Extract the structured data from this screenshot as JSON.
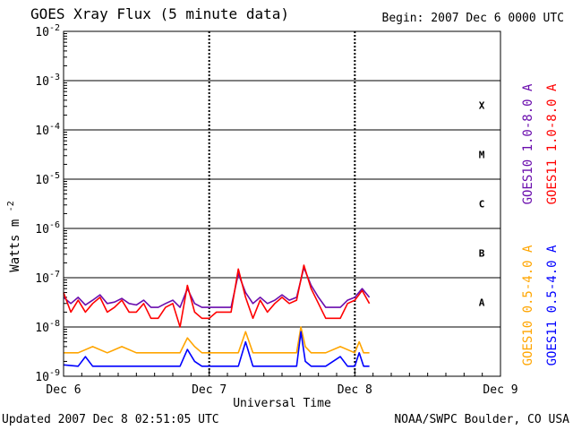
{
  "header": {
    "title": "GOES Xray Flux (5 minute data)",
    "begin": "Begin:  2007 Dec 6 0000 UTC"
  },
  "footer": {
    "updated": "Updated 2007 Dec  8 02:51:05 UTC",
    "credit": "NOAA/SWPC Boulder, CO USA"
  },
  "colors": {
    "goes10_long": "#6a0dad",
    "goes11_long": "#ff0000",
    "goes10_short": "#ffa500",
    "goes11_short": "#0000ff",
    "axis": "#000000"
  },
  "chart_data": {
    "type": "line",
    "title": "GOES Xray Flux (5 minute data)",
    "xlabel": "Universal Time",
    "ylabel": "Watts m",
    "ylabel_sup": "-2",
    "y_scale": "log",
    "ylim": [
      1e-09,
      0.01
    ],
    "y_ticks": [
      {
        "base": "10",
        "exp": "-9"
      },
      {
        "base": "10",
        "exp": "-8"
      },
      {
        "base": "10",
        "exp": "-7"
      },
      {
        "base": "10",
        "exp": "-6"
      },
      {
        "base": "10",
        "exp": "-5"
      },
      {
        "base": "10",
        "exp": "-4"
      },
      {
        "base": "10",
        "exp": "-3"
      },
      {
        "base": "10",
        "exp": "-2"
      }
    ],
    "x_ticks": [
      "Dec 6",
      "Dec 7",
      "Dec 8",
      "Dec 9"
    ],
    "xlim_days": [
      0,
      3
    ],
    "flare_classes": [
      "A",
      "B",
      "C",
      "M",
      "X"
    ],
    "grid": true,
    "legend": [
      {
        "label": "GOES10 1.0-8.0 A",
        "color": "#6a0dad",
        "placement": "right-upper"
      },
      {
        "label": "GOES11 1.0-8.0 A",
        "color": "#ff0000",
        "placement": "right-upper"
      },
      {
        "label": "GOES10 0.5-4.0 A",
        "color": "#ffa500",
        "placement": "right-lower"
      },
      {
        "label": "GOES11 0.5-4.0 A",
        "color": "#0000ff",
        "placement": "right-lower"
      }
    ],
    "series": [
      {
        "name": "GOES10 1.0-8.0 A",
        "color": "#6a0dad",
        "x": [
          0.0,
          0.05,
          0.1,
          0.15,
          0.2,
          0.25,
          0.3,
          0.35,
          0.4,
          0.45,
          0.5,
          0.55,
          0.6,
          0.65,
          0.7,
          0.75,
          0.8,
          0.85,
          0.9,
          0.95,
          1.0,
          1.05,
          1.1,
          1.15,
          1.2,
          1.25,
          1.3,
          1.35,
          1.4,
          1.45,
          1.5,
          1.55,
          1.6,
          1.65,
          1.7,
          1.75,
          1.8,
          1.85,
          1.9,
          1.95,
          2.0,
          2.05,
          2.1
        ],
        "y": [
          4e-08,
          3e-08,
          4e-08,
          2.8e-08,
          3.5e-08,
          4.5e-08,
          3e-08,
          3.2e-08,
          3.8e-08,
          3e-08,
          2.8e-08,
          3.5e-08,
          2.5e-08,
          2.5e-08,
          3e-08,
          3.5e-08,
          2.5e-08,
          6e-08,
          3e-08,
          2.5e-08,
          2.5e-08,
          2.5e-08,
          2.5e-08,
          2.5e-08,
          1.2e-07,
          5e-08,
          3e-08,
          4e-08,
          3e-08,
          3.5e-08,
          4.5e-08,
          3.5e-08,
          4e-08,
          1.6e-07,
          7e-08,
          4e-08,
          2.5e-08,
          2.5e-08,
          2.5e-08,
          3.5e-08,
          4e-08,
          6e-08,
          4e-08
        ]
      },
      {
        "name": "GOES11 1.0-8.0 A",
        "color": "#ff0000",
        "x": [
          0.0,
          0.05,
          0.1,
          0.15,
          0.2,
          0.25,
          0.3,
          0.35,
          0.4,
          0.45,
          0.5,
          0.55,
          0.6,
          0.65,
          0.7,
          0.75,
          0.8,
          0.85,
          0.9,
          0.95,
          1.0,
          1.05,
          1.1,
          1.15,
          1.2,
          1.25,
          1.3,
          1.35,
          1.4,
          1.45,
          1.5,
          1.55,
          1.6,
          1.65,
          1.7,
          1.75,
          1.8,
          1.85,
          1.9,
          1.95,
          2.0,
          2.05,
          2.1
        ],
        "y": [
          5e-08,
          2e-08,
          3.5e-08,
          2e-08,
          3e-08,
          4e-08,
          2e-08,
          2.5e-08,
          3.5e-08,
          2e-08,
          2e-08,
          3e-08,
          1.5e-08,
          1.5e-08,
          2.5e-08,
          3e-08,
          1e-08,
          7e-08,
          2e-08,
          1.5e-08,
          1.5e-08,
          2e-08,
          2e-08,
          2e-08,
          1.5e-07,
          4e-08,
          1.5e-08,
          3.5e-08,
          2e-08,
          3e-08,
          4e-08,
          3e-08,
          3.5e-08,
          1.8e-07,
          6e-08,
          3e-08,
          1.5e-08,
          1.5e-08,
          1.5e-08,
          3e-08,
          3.5e-08,
          5.5e-08,
          3e-08
        ]
      },
      {
        "name": "GOES10 0.5-4.0 A",
        "color": "#ffa500",
        "x": [
          0.0,
          0.1,
          0.2,
          0.3,
          0.4,
          0.5,
          0.6,
          0.7,
          0.8,
          0.85,
          0.9,
          0.95,
          1.0,
          1.1,
          1.2,
          1.25,
          1.3,
          1.4,
          1.5,
          1.6,
          1.63,
          1.66,
          1.7,
          1.8,
          1.9,
          2.0,
          2.03,
          2.06,
          2.1
        ],
        "y": [
          3e-09,
          3e-09,
          4e-09,
          3e-09,
          4e-09,
          3e-09,
          3e-09,
          3e-09,
          3e-09,
          6e-09,
          4e-09,
          3e-09,
          3e-09,
          3e-09,
          3e-09,
          8e-09,
          3e-09,
          3e-09,
          3e-09,
          3e-09,
          1e-08,
          4e-09,
          3e-09,
          3e-09,
          4e-09,
          3e-09,
          5e-09,
          3e-09,
          3e-09
        ]
      },
      {
        "name": "GOES11 0.5-4.0 A",
        "color": "#0000ff",
        "x": [
          0.0,
          0.1,
          0.15,
          0.2,
          0.3,
          0.4,
          0.5,
          0.6,
          0.7,
          0.8,
          0.85,
          0.9,
          0.95,
          1.0,
          1.1,
          1.2,
          1.25,
          1.3,
          1.4,
          1.5,
          1.6,
          1.63,
          1.66,
          1.7,
          1.8,
          1.9,
          1.95,
          2.0,
          2.03,
          2.06,
          2.1
        ],
        "y": [
          1.7e-09,
          1.6e-09,
          2.5e-09,
          1.6e-09,
          1.6e-09,
          1.6e-09,
          1.6e-09,
          1.6e-09,
          1.6e-09,
          1.6e-09,
          3.5e-09,
          2e-09,
          1.6e-09,
          1.6e-09,
          1.6e-09,
          1.6e-09,
          5e-09,
          1.6e-09,
          1.6e-09,
          1.6e-09,
          1.6e-09,
          8e-09,
          2e-09,
          1.6e-09,
          1.6e-09,
          2.5e-09,
          1.6e-09,
          1.6e-09,
          3e-09,
          1.6e-09,
          1.6e-09
        ]
      }
    ]
  }
}
